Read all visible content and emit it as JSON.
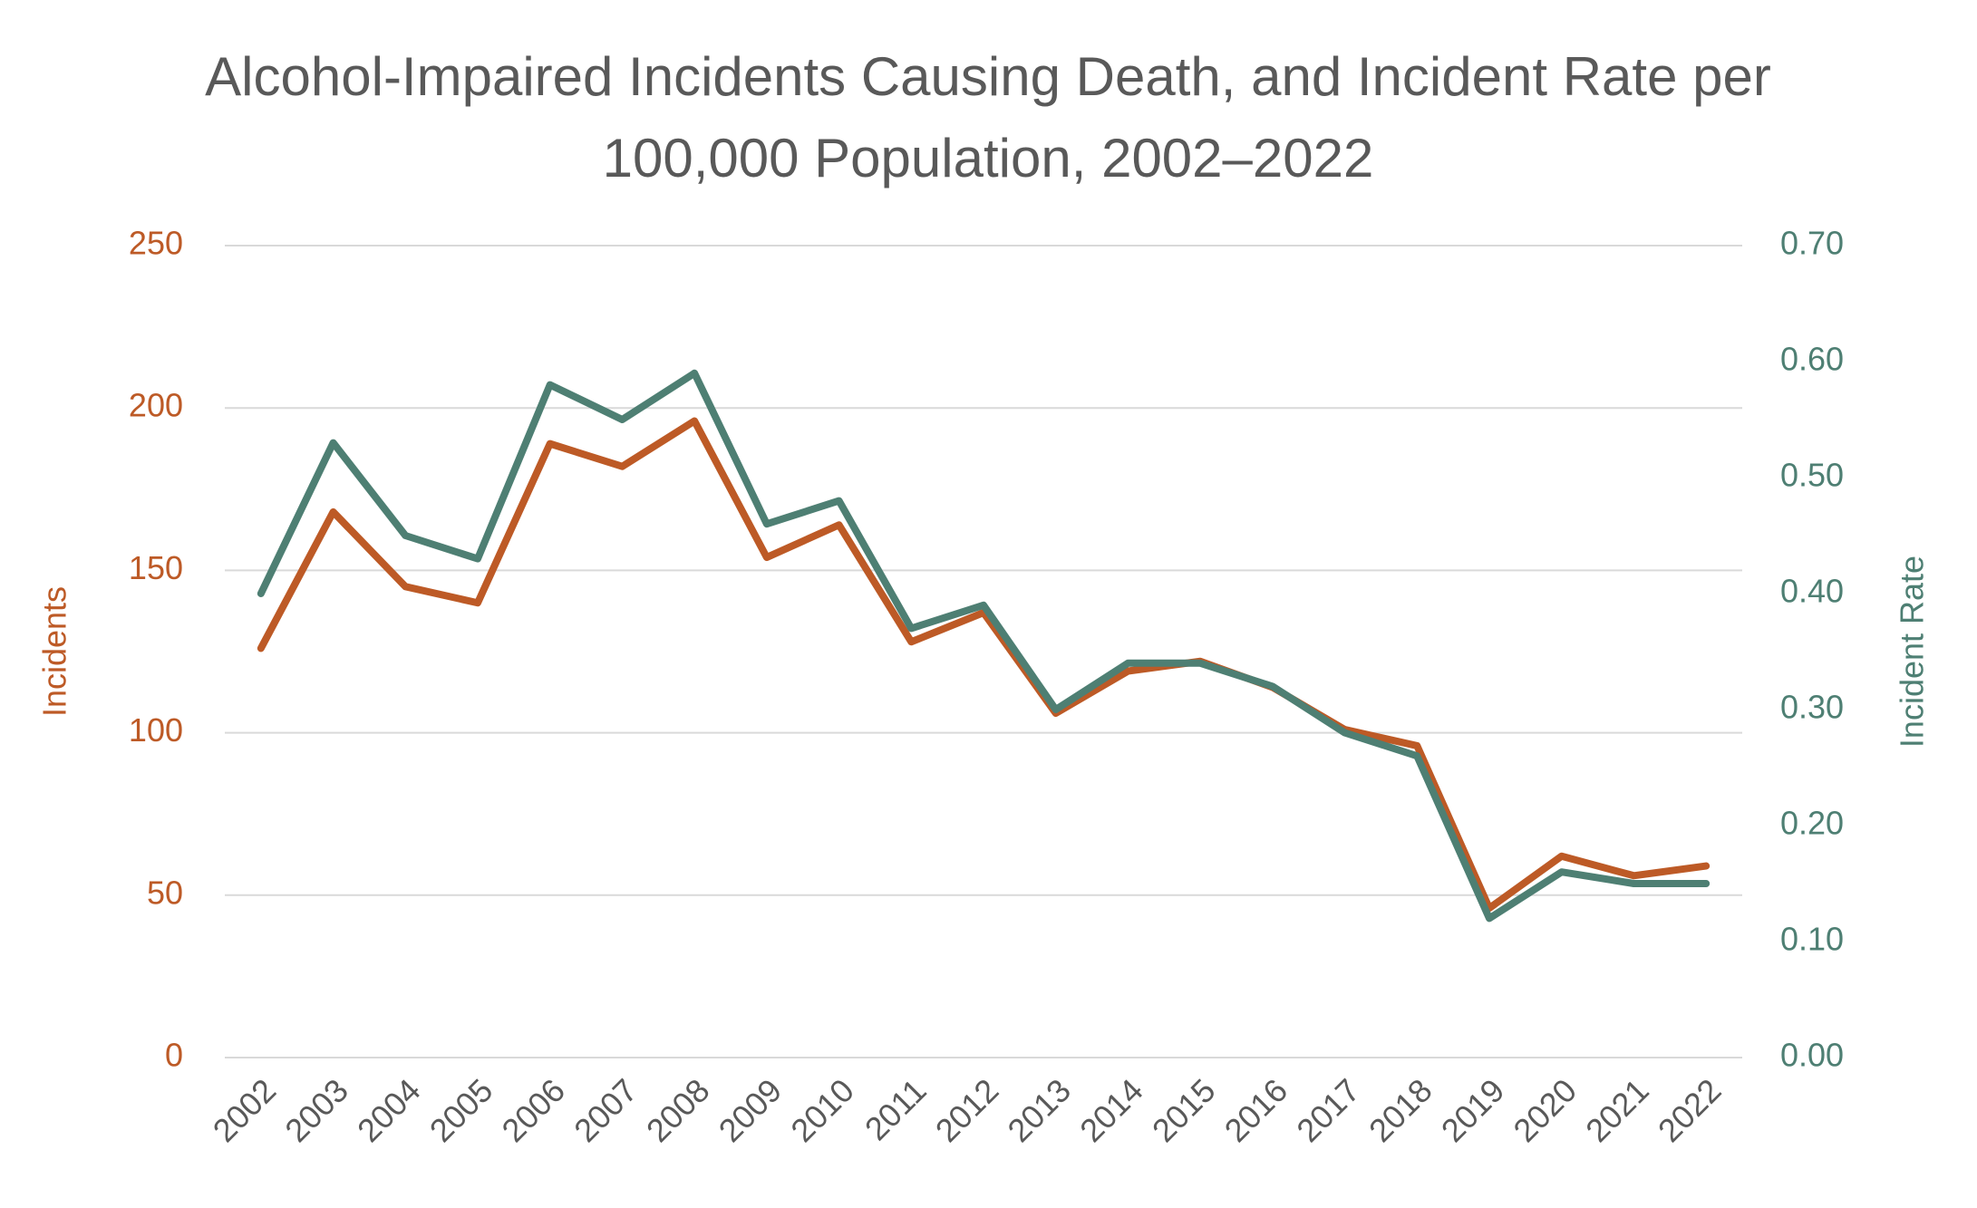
{
  "chart_data": {
    "type": "line",
    "title": "Alcohol-Impaired Incidents Causing Death, and Incident Rate per 100,000 Population, 2002–2022",
    "y_label": "Incidents",
    "y2_label": "Incident Rate",
    "categories": [
      "2002",
      "2003",
      "2004",
      "2005",
      "2006",
      "2007",
      "2008",
      "2009",
      "2010",
      "2011",
      "2012",
      "2013",
      "2014",
      "2015",
      "2016",
      "2017",
      "2018",
      "2019",
      "2020",
      "2021",
      "2022"
    ],
    "series": [
      {
        "name": "Incidents",
        "color": "#bd5a26",
        "values": [
          126,
          168,
          145,
          140,
          189,
          182,
          196,
          154,
          164,
          128,
          137,
          106,
          119,
          122,
          114,
          101,
          96,
          46,
          62,
          56,
          59
        ]
      },
      {
        "name": "Incident Rate",
        "color": "#4e7f73",
        "axis": "y2",
        "values": [
          0.4,
          0.53,
          0.45,
          0.43,
          0.58,
          0.55,
          0.59,
          0.46,
          0.48,
          0.37,
          0.39,
          0.3,
          0.34,
          0.34,
          0.32,
          0.28,
          0.26,
          0.12,
          0.16,
          0.15,
          0.15
        ]
      }
    ],
    "ylim": [
      0,
      250
    ],
    "yticks": [
      0,
      50,
      100,
      150,
      200,
      250
    ],
    "y2lim": [
      0,
      0.7
    ],
    "y2ticks": [
      {
        "value": 0,
        "label": "0.00"
      },
      {
        "value": 0.1,
        "label": "0.10"
      },
      {
        "value": 0.2,
        "label": "0.20"
      },
      {
        "value": 0.3,
        "label": "0.30"
      },
      {
        "value": 0.4,
        "label": "0.40"
      },
      {
        "value": 0.5,
        "label": "0.50"
      },
      {
        "value": 0.6,
        "label": "0.60"
      },
      {
        "value": 0.7,
        "label": "0.70"
      }
    ],
    "grid": true
  }
}
